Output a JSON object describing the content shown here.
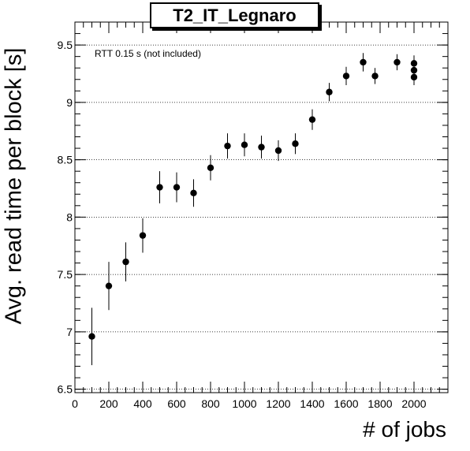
{
  "chart_data": {
    "type": "scatter",
    "title": "T2_IT_Legnaro",
    "xlabel": "# of jobs",
    "ylabel": "Avg. read time per block [s]",
    "annotation": "RTT 0.15 s (not included)",
    "xlim": [
      0,
      2200
    ],
    "ylim": [
      6.47,
      9.7
    ],
    "xticks": [
      0,
      200,
      400,
      600,
      800,
      1000,
      1200,
      1400,
      1600,
      1800,
      2000
    ],
    "yticks": [
      6.5,
      7,
      7.5,
      8,
      8.5,
      9,
      9.5
    ],
    "ytick_labels": [
      "6.5",
      "7",
      "7.5",
      "8",
      "8.5",
      "9",
      "9.5"
    ],
    "grid": "horizontal dotted",
    "series": [
      {
        "x": [
          100,
          200,
          300,
          400,
          500,
          600,
          700,
          800,
          900,
          1000,
          1100,
          1200,
          1300,
          1400,
          1500,
          1600,
          1700,
          1770,
          1900,
          2000,
          2000,
          2000
        ],
        "y": [
          6.96,
          7.4,
          7.61,
          7.84,
          8.26,
          8.26,
          8.21,
          8.43,
          8.62,
          8.63,
          8.61,
          8.58,
          8.64,
          8.85,
          9.09,
          9.23,
          9.35,
          9.23,
          9.35,
          9.34,
          9.28,
          9.22
        ],
        "yerr": [
          0.25,
          0.21,
          0.17,
          0.15,
          0.14,
          0.13,
          0.12,
          0.11,
          0.11,
          0.1,
          0.1,
          0.09,
          0.09,
          0.09,
          0.08,
          0.08,
          0.08,
          0.07,
          0.07,
          0.07,
          0.07,
          0.07
        ]
      }
    ]
  }
}
